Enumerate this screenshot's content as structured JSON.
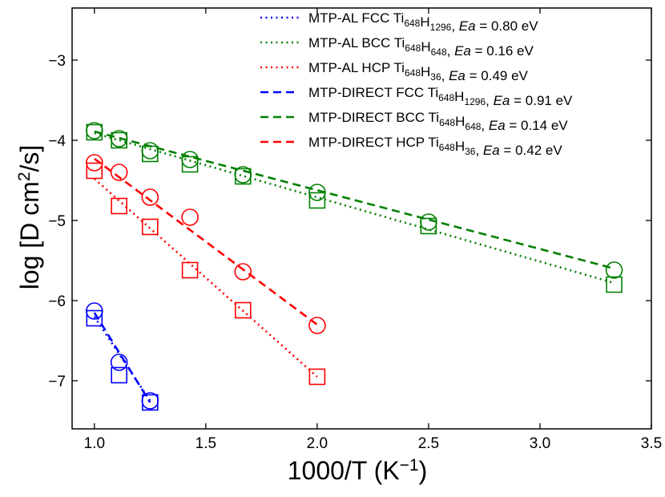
{
  "chart_data": {
    "type": "line",
    "xlabel": {
      "base": "1000/T (K",
      "sup": "−1",
      "tail": ")"
    },
    "ylabel": {
      "base": "log [D cm",
      "sup": "2",
      "tail": "/s]"
    },
    "xlim": [
      0.9,
      3.5
    ],
    "ylim": [
      -7.6,
      -2.35
    ],
    "xticks": [
      1.0,
      1.5,
      2.0,
      2.5,
      3.0,
      3.5
    ],
    "xtick_labels": [
      "1.0",
      "1.5",
      "2.0",
      "2.5",
      "3.0",
      "3.5"
    ],
    "yticks": [
      -7,
      -6,
      -5,
      -4,
      -3
    ],
    "ytick_labels": [
      "−7",
      "−6",
      "−5",
      "−4",
      "−3"
    ],
    "legend_position": "top-right",
    "series": [
      {
        "name": "MTP-AL FCC",
        "method": "MTP-AL",
        "phase": "FCC",
        "sub1": "648",
        "sub2": "1296",
        "ea": "0.80",
        "color": "#0000ff",
        "style": "dotted",
        "marker": "square",
        "points": [
          {
            "x": 1.0,
            "y": -6.22
          },
          {
            "x": 1.111,
            "y": -6.93
          },
          {
            "x": 1.25,
            "y": -7.27
          }
        ],
        "fit": [
          {
            "x": 1.0,
            "y": -6.2
          },
          {
            "x": 1.25,
            "y": -7.25
          }
        ]
      },
      {
        "name": "MTP-AL BCC",
        "method": "MTP-AL",
        "phase": "BCC",
        "sub1": "648",
        "sub2": "648",
        "ea": "0.16",
        "color": "#008000",
        "style": "dotted",
        "marker": "square",
        "points": [
          {
            "x": 1.0,
            "y": -3.9
          },
          {
            "x": 1.111,
            "y": -4.0
          },
          {
            "x": 1.25,
            "y": -4.17
          },
          {
            "x": 1.429,
            "y": -4.3
          },
          {
            "x": 1.667,
            "y": -4.45
          },
          {
            "x": 2.0,
            "y": -4.75
          },
          {
            "x": 2.5,
            "y": -5.07
          },
          {
            "x": 3.333,
            "y": -5.8
          }
        ],
        "fit": [
          {
            "x": 1.0,
            "y": -3.91
          },
          {
            "x": 3.333,
            "y": -5.78
          }
        ]
      },
      {
        "name": "MTP-AL HCP",
        "method": "MTP-AL",
        "phase": "HCP",
        "sub1": "648",
        "sub2": "36",
        "ea": "0.49",
        "color": "#ff0000",
        "style": "dotted",
        "marker": "square",
        "points": [
          {
            "x": 1.0,
            "y": -4.38
          },
          {
            "x": 1.111,
            "y": -4.82
          },
          {
            "x": 1.25,
            "y": -5.08
          },
          {
            "x": 1.429,
            "y": -5.62
          },
          {
            "x": 1.667,
            "y": -6.12
          },
          {
            "x": 2.0,
            "y": -6.95
          }
        ],
        "fit": [
          {
            "x": 1.0,
            "y": -4.48
          },
          {
            "x": 2.0,
            "y": -6.95
          }
        ]
      },
      {
        "name": "MTP-DIRECT FCC",
        "method": "MTP-DIRECT",
        "phase": "FCC",
        "sub1": "648",
        "sub2": "1296",
        "ea": "0.91",
        "color": "#0000ff",
        "style": "dashed",
        "marker": "circle",
        "points": [
          {
            "x": 1.0,
            "y": -6.13
          },
          {
            "x": 1.111,
            "y": -6.77
          },
          {
            "x": 1.25,
            "y": -7.25
          }
        ],
        "fit": [
          {
            "x": 1.0,
            "y": -6.15
          },
          {
            "x": 1.25,
            "y": -7.27
          }
        ]
      },
      {
        "name": "MTP-DIRECT BCC",
        "method": "MTP-DIRECT",
        "phase": "BCC",
        "sub1": "648",
        "sub2": "648",
        "ea": "0.14",
        "color": "#008000",
        "style": "dashed",
        "marker": "circle",
        "points": [
          {
            "x": 1.0,
            "y": -3.88
          },
          {
            "x": 1.111,
            "y": -3.98
          },
          {
            "x": 1.25,
            "y": -4.13
          },
          {
            "x": 1.429,
            "y": -4.24
          },
          {
            "x": 1.667,
            "y": -4.43
          },
          {
            "x": 2.0,
            "y": -4.65
          },
          {
            "x": 2.5,
            "y": -5.02
          },
          {
            "x": 3.333,
            "y": -5.62
          }
        ],
        "fit": [
          {
            "x": 1.0,
            "y": -3.89
          },
          {
            "x": 3.333,
            "y": -5.6
          }
        ]
      },
      {
        "name": "MTP-DIRECT HCP",
        "method": "MTP-DIRECT",
        "phase": "HCP",
        "sub1": "648",
        "sub2": "36",
        "ea": "0.42",
        "color": "#ff0000",
        "style": "dashed",
        "marker": "circle",
        "points": [
          {
            "x": 1.0,
            "y": -4.28
          },
          {
            "x": 1.111,
            "y": -4.4
          },
          {
            "x": 1.25,
            "y": -4.71
          },
          {
            "x": 1.429,
            "y": -4.96
          },
          {
            "x": 1.667,
            "y": -5.64
          },
          {
            "x": 2.0,
            "y": -6.31
          }
        ],
        "fit": [
          {
            "x": 1.0,
            "y": -4.23
          },
          {
            "x": 2.0,
            "y": -6.3
          }
        ]
      }
    ]
  }
}
